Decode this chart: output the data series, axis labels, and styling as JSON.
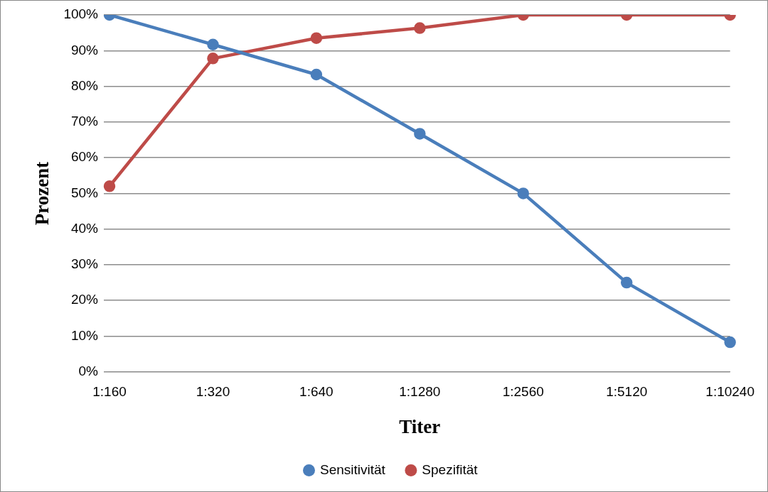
{
  "chart_data": {
    "type": "line",
    "xlabel": "Titer",
    "ylabel": "Prozent",
    "categories": [
      "1:160",
      "1:320",
      "1:640",
      "1:1280",
      "1:2560",
      "1:5120",
      "1:10240"
    ],
    "series": [
      {
        "name": "Sensitivität",
        "color": "#4a7ebb",
        "values": [
          100,
          91.7,
          83.3,
          66.7,
          50,
          25,
          8.3
        ]
      },
      {
        "name": "Spezifität",
        "color": "#be4b48",
        "values": [
          52,
          87.8,
          93.5,
          96.3,
          100,
          100,
          100
        ]
      }
    ],
    "ylim": [
      0,
      100
    ],
    "yticks": [
      {
        "value": 0,
        "label": "0%"
      },
      {
        "value": 10,
        "label": "10%"
      },
      {
        "value": 20,
        "label": "20%"
      },
      {
        "value": 30,
        "label": "30%"
      },
      {
        "value": 40,
        "label": "40%"
      },
      {
        "value": 50,
        "label": "50%"
      },
      {
        "value": 60,
        "label": "60%"
      },
      {
        "value": 70,
        "label": "70%"
      },
      {
        "value": 80,
        "label": "80%"
      },
      {
        "value": 90,
        "label": "90%"
      },
      {
        "value": 100,
        "label": "100%"
      }
    ],
    "grid": "y",
    "legend": "bottom",
    "marker": "circle",
    "line_style": "solid"
  }
}
